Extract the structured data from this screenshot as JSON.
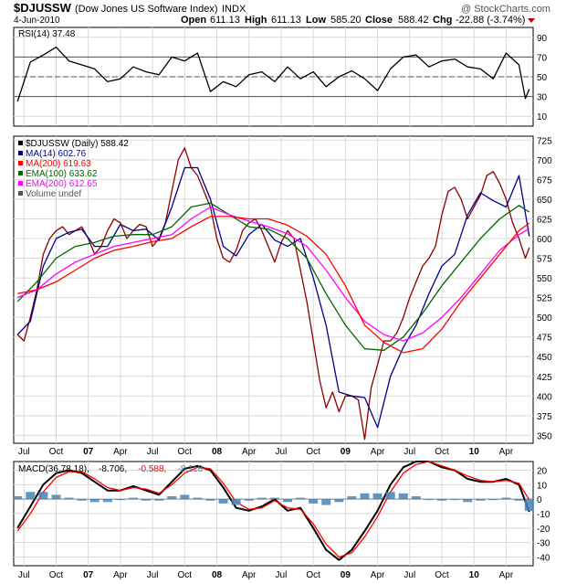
{
  "header": {
    "symbol": "$DJUSSW",
    "name": "(Dow Jones US Software Index)",
    "exchange": "INDX",
    "date": "4-Jun-2010",
    "watermark": "@ StockCharts.com",
    "open_label": "Open",
    "open": "611.13",
    "high_label": "High",
    "high": "611.13",
    "low_label": "Low",
    "low": "585.20",
    "close_label": "Close",
    "close": "588.42",
    "chg_label": "Chg",
    "chg": "-22.88 (-3.74%)",
    "chg_arrow_color": "#c00000"
  },
  "chart_data": [
    {
      "type": "line",
      "panel": "RSI",
      "legend": "RSI(14) 37.48",
      "ylim": [
        0,
        100
      ],
      "yticks": [
        90,
        70,
        50,
        30,
        10
      ],
      "levels": [
        70,
        50,
        30
      ],
      "grid": true,
      "series": [
        {
          "name": "RSI(14)",
          "color": "#000000",
          "x": [
            2006.45,
            2006.55,
            2006.65,
            2006.75,
            2006.85,
            2006.95,
            2007.05,
            2007.15,
            2007.25,
            2007.35,
            2007.45,
            2007.55,
            2007.65,
            2007.75,
            2007.85,
            2007.95,
            2008.05,
            2008.15,
            2008.25,
            2008.35,
            2008.45,
            2008.55,
            2008.65,
            2008.75,
            2008.85,
            2008.95,
            2009.05,
            2009.15,
            2009.25,
            2009.35,
            2009.45,
            2009.55,
            2009.65,
            2009.75,
            2009.85,
            2009.95,
            2010.05,
            2010.15,
            2010.25,
            2010.35,
            2010.4,
            2010.43
          ],
          "values": [
            25,
            65,
            72,
            80,
            66,
            62,
            58,
            45,
            48,
            60,
            55,
            52,
            70,
            66,
            74,
            35,
            45,
            40,
            52,
            55,
            45,
            60,
            48,
            55,
            40,
            50,
            56,
            48,
            36,
            58,
            70,
            72,
            60,
            66,
            68,
            60,
            58,
            48,
            74,
            62,
            28,
            37.48
          ]
        }
      ]
    },
    {
      "type": "line",
      "panel": "Price",
      "legend": [
        {
          "label": "$DJUSSW (Daily) 588.42",
          "color": "#000000"
        },
        {
          "label": "MA(14) 602.76",
          "color": "#00008b"
        },
        {
          "label": "MA(200) 619.63",
          "color": "#ff0000"
        },
        {
          "label": "EMA(100) 633.62",
          "color": "#006400"
        },
        {
          "label": "EMA(200) 612.65",
          "color": "#ff00ff"
        },
        {
          "label": "Volume undef",
          "color": "#555555"
        }
      ],
      "ylim": [
        340,
        730
      ],
      "yticks": [
        725,
        700,
        675,
        650,
        625,
        600,
        575,
        550,
        525,
        500,
        475,
        450,
        425,
        400,
        375,
        350
      ],
      "grid": true,
      "series": [
        {
          "name": "$DJUSSW (Daily)",
          "color": "#8b0000",
          "x": [
            2006.45,
            2006.5,
            2006.55,
            2006.6,
            2006.65,
            2006.7,
            2006.75,
            2006.8,
            2006.85,
            2006.9,
            2006.95,
            2007.0,
            2007.05,
            2007.1,
            2007.15,
            2007.2,
            2007.25,
            2007.3,
            2007.35,
            2007.4,
            2007.45,
            2007.5,
            2007.55,
            2007.6,
            2007.65,
            2007.7,
            2007.75,
            2007.8,
            2007.85,
            2007.9,
            2007.95,
            2008.0,
            2008.05,
            2008.1,
            2008.15,
            2008.2,
            2008.25,
            2008.3,
            2008.35,
            2008.4,
            2008.45,
            2008.5,
            2008.55,
            2008.6,
            2008.65,
            2008.7,
            2008.75,
            2008.8,
            2008.85,
            2008.9,
            2008.95,
            2009.0,
            2009.05,
            2009.1,
            2009.15,
            2009.2,
            2009.25,
            2009.3,
            2009.35,
            2009.4,
            2009.45,
            2009.5,
            2009.55,
            2009.6,
            2009.65,
            2009.7,
            2009.75,
            2009.8,
            2009.85,
            2009.9,
            2009.95,
            2010.0,
            2010.05,
            2010.1,
            2010.15,
            2010.2,
            2010.25,
            2010.3,
            2010.35,
            2010.4,
            2010.43
          ],
          "values": [
            478,
            470,
            500,
            535,
            580,
            600,
            610,
            615,
            605,
            610,
            615,
            600,
            580,
            590,
            610,
            625,
            620,
            600,
            610,
            618,
            615,
            590,
            600,
            620,
            660,
            700,
            715,
            690,
            680,
            660,
            640,
            600,
            575,
            570,
            585,
            610,
            620,
            625,
            610,
            590,
            570,
            595,
            610,
            600,
            560,
            520,
            470,
            420,
            385,
            405,
            380,
            400,
            400,
            395,
            345,
            410,
            440,
            470,
            470,
            480,
            500,
            525,
            545,
            565,
            575,
            590,
            630,
            660,
            665,
            650,
            625,
            640,
            655,
            680,
            685,
            670,
            650,
            620,
            600,
            575,
            588.42
          ]
        },
        {
          "name": "MA(14)",
          "color": "#00008b",
          "x": [
            2006.45,
            2006.55,
            2006.65,
            2006.75,
            2006.85,
            2006.95,
            2007.05,
            2007.15,
            2007.25,
            2007.35,
            2007.45,
            2007.55,
            2007.65,
            2007.75,
            2007.85,
            2007.95,
            2008.05,
            2008.15,
            2008.25,
            2008.35,
            2008.45,
            2008.55,
            2008.65,
            2008.75,
            2008.85,
            2008.95,
            2009.05,
            2009.15,
            2009.25,
            2009.35,
            2009.45,
            2009.55,
            2009.65,
            2009.75,
            2009.85,
            2009.95,
            2010.05,
            2010.15,
            2010.25,
            2010.35,
            2010.43
          ],
          "values": [
            478,
            495,
            565,
            600,
            608,
            612,
            590,
            590,
            618,
            610,
            612,
            598,
            640,
            690,
            690,
            650,
            590,
            578,
            605,
            618,
            598,
            590,
            600,
            550,
            490,
            405,
            400,
            398,
            360,
            425,
            462,
            490,
            530,
            565,
            580,
            630,
            658,
            648,
            640,
            680,
            602.76
          ]
        },
        {
          "name": "EMA(100)",
          "color": "#006400",
          "x": [
            2006.45,
            2006.6,
            2006.75,
            2006.9,
            2007.05,
            2007.2,
            2007.35,
            2007.5,
            2007.65,
            2007.8,
            2007.95,
            2008.1,
            2008.25,
            2008.4,
            2008.55,
            2008.7,
            2008.85,
            2009.0,
            2009.15,
            2009.3,
            2009.45,
            2009.6,
            2009.75,
            2009.9,
            2010.05,
            2010.2,
            2010.35,
            2010.43
          ],
          "values": [
            520,
            545,
            575,
            590,
            595,
            603,
            605,
            605,
            615,
            640,
            645,
            630,
            615,
            612,
            600,
            575,
            530,
            490,
            460,
            458,
            475,
            505,
            540,
            570,
            600,
            625,
            642,
            633.62
          ]
        },
        {
          "name": "EMA(200)",
          "color": "#ff00ff",
          "x": [
            2006.45,
            2006.6,
            2006.75,
            2006.9,
            2007.05,
            2007.2,
            2007.35,
            2007.5,
            2007.65,
            2007.8,
            2007.95,
            2008.1,
            2008.25,
            2008.4,
            2008.55,
            2008.7,
            2008.85,
            2009.0,
            2009.15,
            2009.3,
            2009.45,
            2009.6,
            2009.75,
            2009.9,
            2010.05,
            2010.2,
            2010.35,
            2010.43
          ],
          "values": [
            525,
            535,
            555,
            570,
            580,
            590,
            595,
            600,
            605,
            625,
            640,
            630,
            622,
            615,
            606,
            590,
            560,
            525,
            495,
            478,
            470,
            480,
            500,
            525,
            555,
            585,
            605,
            612.65
          ]
        },
        {
          "name": "MA(200)",
          "color": "#ff0000",
          "x": [
            2006.45,
            2006.6,
            2006.75,
            2006.9,
            2007.05,
            2007.2,
            2007.35,
            2007.5,
            2007.65,
            2007.8,
            2007.95,
            2008.1,
            2008.25,
            2008.4,
            2008.55,
            2008.7,
            2008.85,
            2009.0,
            2009.15,
            2009.3,
            2009.45,
            2009.6,
            2009.75,
            2009.9,
            2010.05,
            2010.2,
            2010.35,
            2010.43
          ],
          "values": [
            530,
            535,
            545,
            560,
            575,
            585,
            590,
            596,
            600,
            615,
            628,
            628,
            625,
            625,
            617,
            603,
            580,
            540,
            490,
            468,
            455,
            460,
            485,
            520,
            550,
            580,
            610,
            619.63
          ]
        }
      ]
    },
    {
      "type": "line",
      "panel": "MACD",
      "legend": [
        {
          "label": "MACD(36,78,18)",
          "color": "#000000"
        },
        {
          "label": "-8.706",
          "color": "#000000"
        },
        {
          "label": "-0.588",
          "color": "#ff0000"
        },
        {
          "label": "-8.118",
          "color": "#4682b4"
        }
      ],
      "ylim": [
        -46,
        26
      ],
      "yticks": [
        20,
        10,
        0,
        -10,
        -20,
        -30,
        -40
      ],
      "grid": true,
      "series": [
        {
          "name": "MACD",
          "color": "#000000",
          "x": [
            2006.45,
            2006.55,
            2006.65,
            2006.75,
            2006.85,
            2006.95,
            2007.05,
            2007.15,
            2007.25,
            2007.35,
            2007.45,
            2007.55,
            2007.65,
            2007.75,
            2007.85,
            2007.95,
            2008.05,
            2008.15,
            2008.25,
            2008.35,
            2008.45,
            2008.55,
            2008.65,
            2008.75,
            2008.85,
            2008.95,
            2009.05,
            2009.15,
            2009.25,
            2009.35,
            2009.45,
            2009.55,
            2009.65,
            2009.75,
            2009.85,
            2009.95,
            2010.05,
            2010.15,
            2010.25,
            2010.35,
            2010.43
          ],
          "values": [
            -20,
            -5,
            10,
            18,
            20,
            18,
            12,
            6,
            6,
            9,
            6,
            3,
            12,
            21,
            23,
            20,
            8,
            -6,
            -8,
            -5,
            0,
            -8,
            -6,
            -20,
            -35,
            -42,
            -35,
            -22,
            -8,
            10,
            22,
            26,
            26,
            22,
            20,
            14,
            12,
            12,
            14,
            10,
            -8.706
          ]
        },
        {
          "name": "Signal",
          "color": "#ff0000",
          "x": [
            2006.45,
            2006.55,
            2006.65,
            2006.75,
            2006.85,
            2006.95,
            2007.05,
            2007.15,
            2007.25,
            2007.35,
            2007.45,
            2007.55,
            2007.65,
            2007.75,
            2007.85,
            2007.95,
            2008.05,
            2008.15,
            2008.25,
            2008.35,
            2008.45,
            2008.55,
            2008.65,
            2008.75,
            2008.85,
            2008.95,
            2009.05,
            2009.15,
            2009.25,
            2009.35,
            2009.45,
            2009.55,
            2009.65,
            2009.75,
            2009.85,
            2009.95,
            2010.05,
            2010.15,
            2010.25,
            2010.35,
            2010.43
          ],
          "values": [
            -22,
            -10,
            5,
            15,
            19,
            19,
            14,
            8,
            6,
            8,
            7,
            4,
            10,
            18,
            22,
            21,
            11,
            -2,
            -7,
            -6,
            -1,
            -6,
            -7,
            -17,
            -31,
            -40,
            -37,
            -26,
            -12,
            5,
            18,
            24,
            26,
            23,
            20,
            16,
            13,
            12,
            13,
            11,
            -0.588
          ]
        },
        {
          "name": "Histogram",
          "color": "#4682b4",
          "style": "bars",
          "x": [
            2006.45,
            2006.55,
            2006.65,
            2006.75,
            2006.85,
            2006.95,
            2007.05,
            2007.15,
            2007.25,
            2007.35,
            2007.45,
            2007.55,
            2007.65,
            2007.75,
            2007.85,
            2007.95,
            2008.05,
            2008.15,
            2008.25,
            2008.35,
            2008.45,
            2008.55,
            2008.65,
            2008.75,
            2008.85,
            2008.95,
            2009.05,
            2009.15,
            2009.25,
            2009.35,
            2009.45,
            2009.55,
            2009.65,
            2009.75,
            2009.85,
            2009.95,
            2010.05,
            2010.15,
            2010.25,
            2010.35,
            2010.43
          ],
          "values": [
            2,
            5,
            5,
            3,
            1,
            -1,
            -2,
            -2,
            0,
            1,
            -1,
            -1,
            2,
            3,
            1,
            -1,
            -3,
            -4,
            -1,
            1,
            1,
            -2,
            1,
            -3,
            -4,
            -2,
            2,
            4,
            4,
            5,
            4,
            2,
            0,
            -1,
            0,
            -2,
            -1,
            0,
            1,
            -1,
            -8.118
          ]
        }
      ]
    }
  ],
  "x_axis": {
    "xlim": [
      2006.42,
      2010.46
    ],
    "ticks": [
      {
        "label": "Jul",
        "x": 2006.5,
        "bold": false
      },
      {
        "label": "Oct",
        "x": 2006.75,
        "bold": false
      },
      {
        "label": "07",
        "x": 2007.0,
        "bold": true
      },
      {
        "label": "Apr",
        "x": 2007.25,
        "bold": false
      },
      {
        "label": "Jul",
        "x": 2007.5,
        "bold": false
      },
      {
        "label": "Oct",
        "x": 2007.75,
        "bold": false
      },
      {
        "label": "08",
        "x": 2008.0,
        "bold": true
      },
      {
        "label": "Apr",
        "x": 2008.25,
        "bold": false
      },
      {
        "label": "Jul",
        "x": 2008.5,
        "bold": false
      },
      {
        "label": "Oct",
        "x": 2008.75,
        "bold": false
      },
      {
        "label": "09",
        "x": 2009.0,
        "bold": true
      },
      {
        "label": "Apr",
        "x": 2009.25,
        "bold": false
      },
      {
        "label": "Jul",
        "x": 2009.5,
        "bold": false
      },
      {
        "label": "Oct",
        "x": 2009.75,
        "bold": false
      },
      {
        "label": "10",
        "x": 2010.0,
        "bold": true
      },
      {
        "label": "Apr",
        "x": 2010.25,
        "bold": false
      }
    ]
  }
}
